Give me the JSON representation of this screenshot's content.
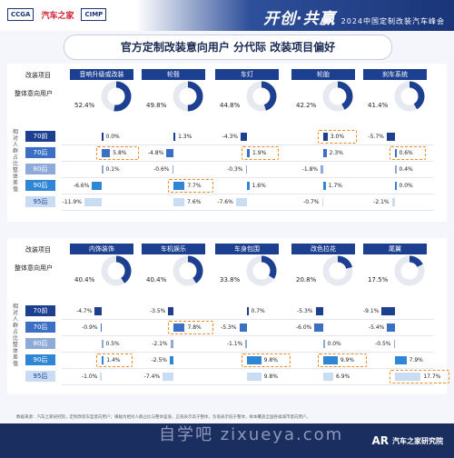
{
  "header": {
    "logo1": "CCGA",
    "logo2": "汽车之家",
    "logo3": "CIMP",
    "brand_main": "开创·共赢",
    "brand_sub": "2024中国定制改装汽车峰会"
  },
  "title": "官方定制改装意向用户 分代际 改装项目偏好",
  "labels": {
    "project": "改装项目",
    "overall": "整体意向用户",
    "vertical": "相对人群占比整体差值"
  },
  "generations": [
    "70前",
    "70后",
    "80后",
    "90后",
    "95后"
  ],
  "colors": {
    "navy": "#1d3f8f",
    "g70pre": "#1d3f8f",
    "g70": "#3a6fc4",
    "g80": "#8faad8",
    "g90": "#2f86d4",
    "g95": "#c8dcf3",
    "highlight": "#f08a24",
    "donut_track": "#e6e9f0"
  },
  "chart_data": [
    {
      "type": "bar",
      "title": "",
      "categories": [
        "音响升级或改装",
        "轮毂",
        "车灯",
        "轮胎",
        "刹车系统"
      ],
      "overall": [
        52.4,
        49.8,
        44.8,
        42.2,
        41.4
      ],
      "series": [
        {
          "name": "70前",
          "values": [
            0.0,
            1.3,
            -4.3,
            3.0,
            -5.7
          ]
        },
        {
          "name": "70后",
          "values": [
            5.8,
            -4.8,
            1.9,
            2.3,
            0.6
          ]
        },
        {
          "name": "80后",
          "values": [
            0.1,
            -0.6,
            -0.3,
            -1.8,
            0.4
          ]
        },
        {
          "name": "90后",
          "values": [
            -6.6,
            7.7,
            1.6,
            1.7,
            0.0
          ]
        },
        {
          "name": "95后",
          "values": [
            -11.9,
            7.6,
            -7.6,
            -0.7,
            -2.1
          ]
        }
      ],
      "highlights": [
        [
          1,
          0
        ],
        [
          3,
          1
        ],
        [
          1,
          2
        ],
        [
          0,
          3
        ],
        [
          1,
          4
        ]
      ]
    },
    {
      "type": "bar",
      "title": "",
      "categories": [
        "内饰装饰",
        "车机娱乐",
        "车身包围",
        "改色拉花",
        "尾翼"
      ],
      "overall": [
        40.4,
        40.4,
        33.8,
        20.8,
        17.5
      ],
      "series": [
        {
          "name": "70前",
          "values": [
            -4.7,
            -3.5,
            0.7,
            -5.3,
            -9.1
          ]
        },
        {
          "name": "70后",
          "values": [
            -0.9,
            7.8,
            -5.3,
            -6.0,
            -5.4
          ]
        },
        {
          "name": "80后",
          "values": [
            0.5,
            -2.1,
            -1.1,
            0.0,
            -0.5
          ]
        },
        {
          "name": "90后",
          "values": [
            1.4,
            -2.5,
            9.8,
            9.9,
            7.9
          ]
        },
        {
          "name": "95后",
          "values": [
            -1.0,
            -7.4,
            9.8,
            6.9,
            17.7
          ]
        }
      ],
      "highlights": [
        [
          3,
          0
        ],
        [
          1,
          1
        ],
        [
          3,
          2
        ],
        [
          3,
          3
        ],
        [
          4,
          4
        ]
      ]
    }
  ],
  "footnote": "数据来源：汽车之家研究院，定制改装车型意向用户；横轴为相对人群占比与整体差值，正值表示高于整体，负值表示低于整体，样本覆盖全国各级城市意向用户。",
  "watermark": "自学吧 zixueya.com",
  "footer": {
    "institute": "汽车之家研究院",
    "institute_logo": "AR"
  }
}
